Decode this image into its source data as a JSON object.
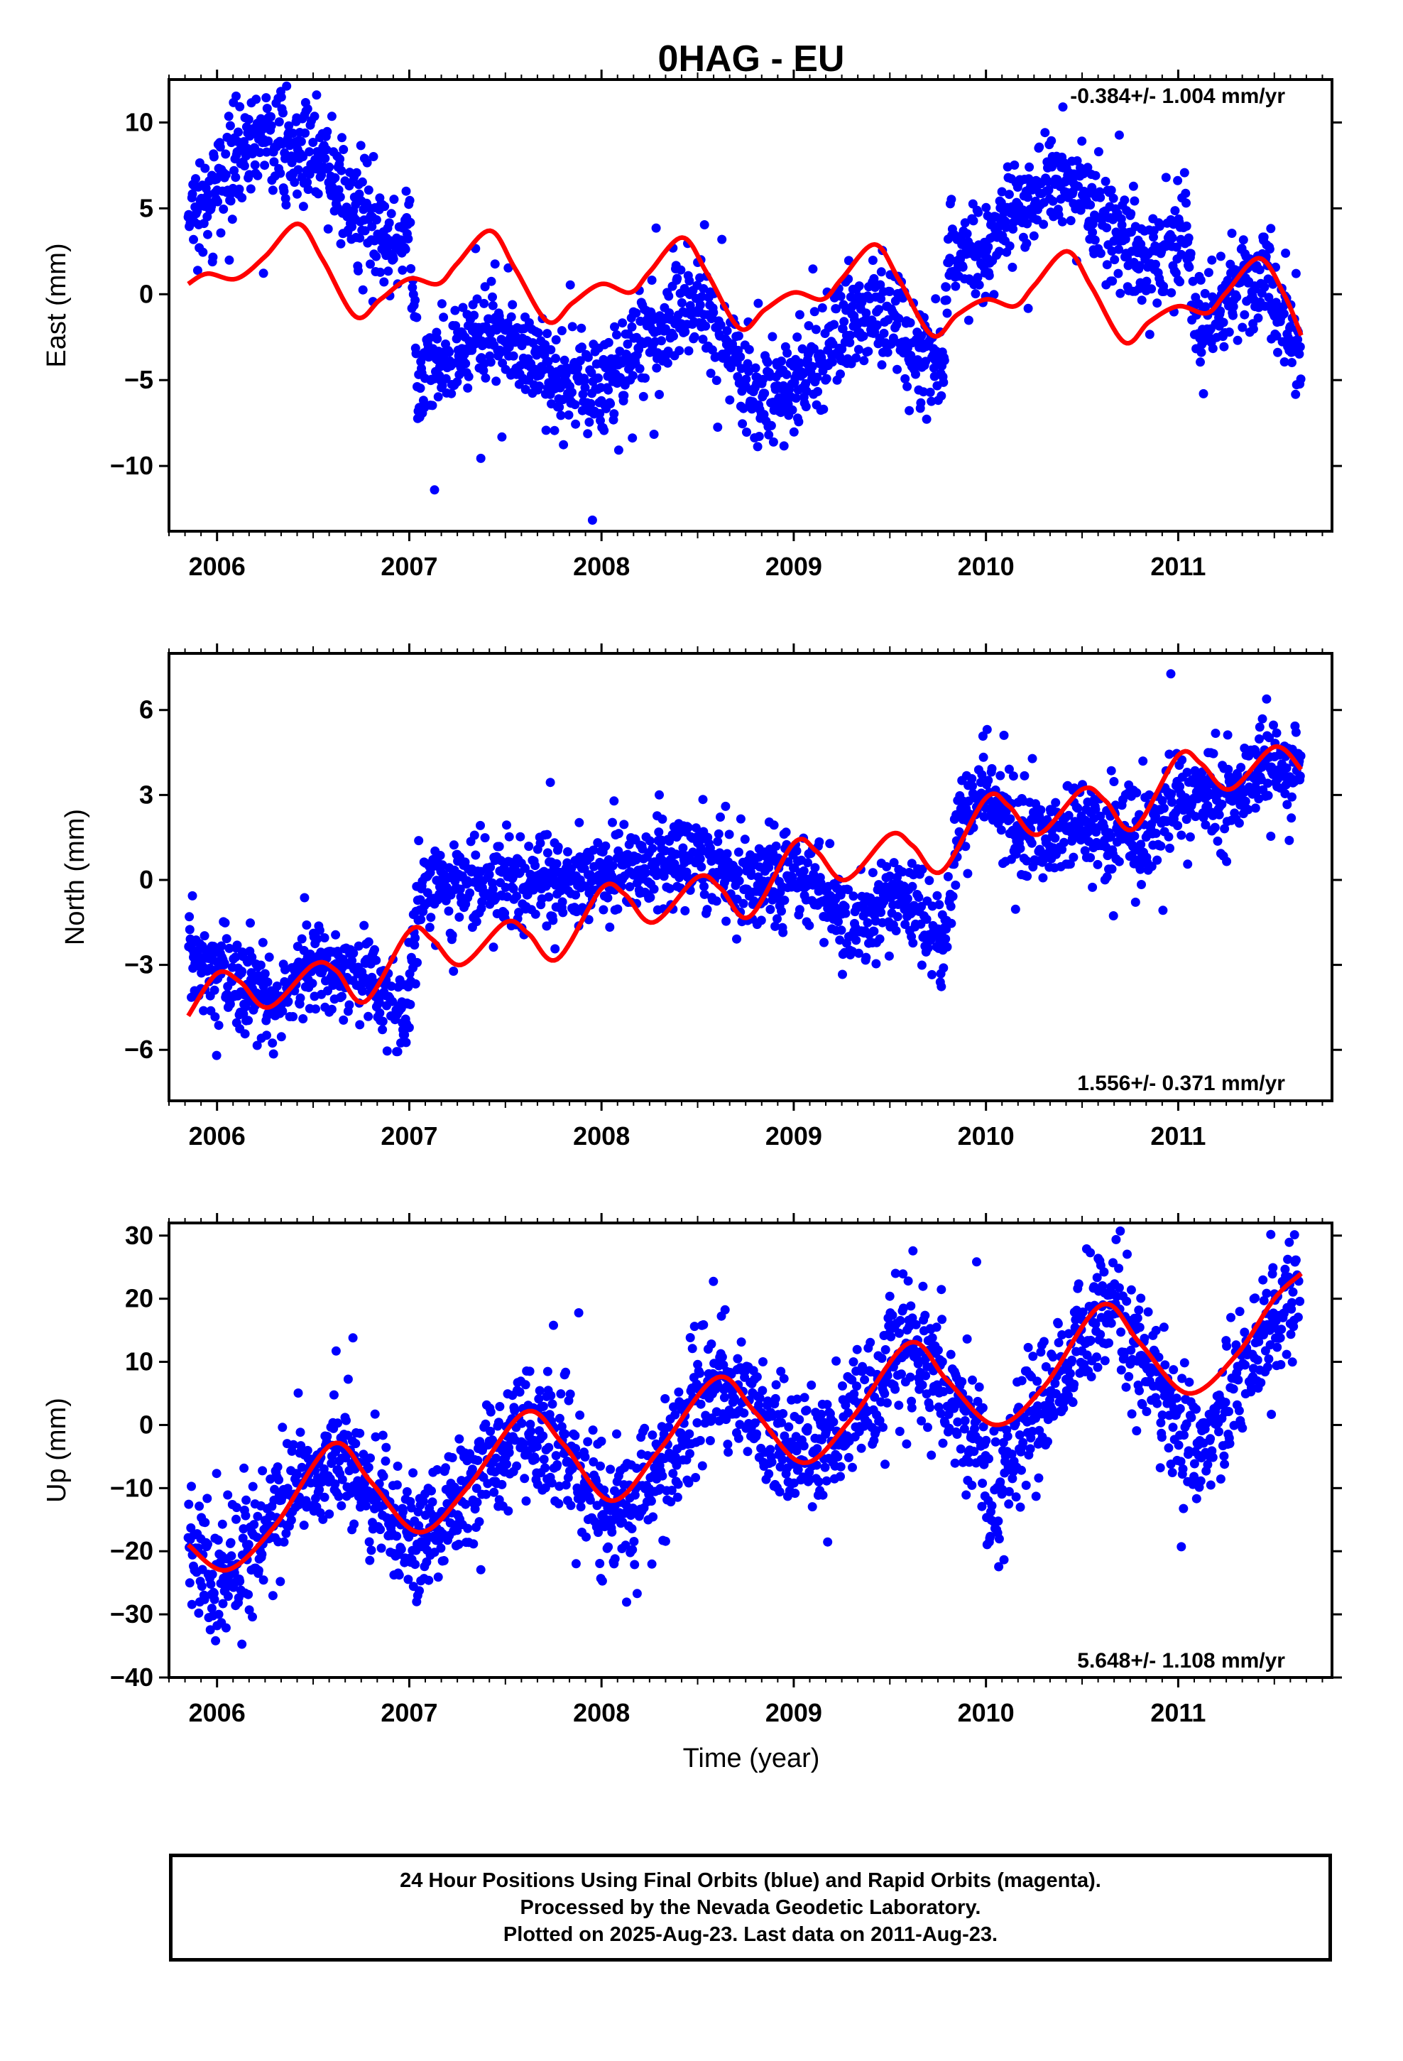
{
  "title": "0HAG - EU",
  "xlabel": "Time (year)",
  "footer": {
    "line1": "24 Hour Positions Using Final Orbits (blue) and Rapid Orbits (magenta).",
    "line2": "Processed by the Nevada Geodetic Laboratory.",
    "line3": "Plotted on 2025-Aug-23. Last data on 2011-Aug-23."
  },
  "colors": {
    "final_orbits": "#0000ff",
    "model_fit": "#ff0000",
    "rapid_orbits": "#ff00ff"
  },
  "chart_data": [
    {
      "type": "scatter",
      "component": "east",
      "ylabel": "East (mm)",
      "rate_label": "-0.384+/- 1.004 mm/yr",
      "xlim": [
        2005.75,
        2011.8
      ],
      "ylim": [
        -13.8,
        12.5
      ],
      "x_ticks": [
        2006,
        2007,
        2008,
        2009,
        2010,
        2011
      ],
      "y_ticks": [
        10,
        5,
        0,
        -5,
        -10
      ],
      "data_range": [
        2005.85,
        2011.64
      ],
      "series": [
        {
          "kind": "points",
          "color": "#0000ff",
          "trend_knots": [
            [
              2005.85,
              4.5
            ],
            [
              2006.0,
              6.5
            ],
            [
              2006.2,
              8.8
            ],
            [
              2006.5,
              8.5
            ],
            [
              2006.7,
              5.0
            ],
            [
              2006.9,
              3.0
            ],
            [
              2007.0,
              4.0
            ],
            [
              2007.05,
              -5.5
            ],
            [
              2007.3,
              -3.0
            ],
            [
              2007.5,
              -2.5
            ],
            [
              2007.8,
              -5.0
            ],
            [
              2008.0,
              -5.5
            ],
            [
              2008.3,
              -2.0
            ],
            [
              2008.5,
              -0.5
            ],
            [
              2008.8,
              -6.0
            ],
            [
              2009.0,
              -5.0
            ],
            [
              2009.4,
              -0.5
            ],
            [
              2009.6,
              -2.5
            ],
            [
              2009.78,
              -5.0
            ],
            [
              2009.8,
              2.5
            ],
            [
              2010.0,
              2.5
            ],
            [
              2010.2,
              5.5
            ],
            [
              2010.4,
              7.0
            ],
            [
              2010.6,
              4.5
            ],
            [
              2010.8,
              2.0
            ],
            [
              2011.05,
              3.0
            ],
            [
              2011.1,
              -2.5
            ],
            [
              2011.3,
              0.0
            ],
            [
              2011.45,
              1.0
            ],
            [
              2011.64,
              -3.0
            ]
          ],
          "scatter_sd": 1.5
        },
        {
          "kind": "line",
          "name": "model",
          "color": "#ff0000",
          "samples": [
            [
              2005.85,
              0.6
            ],
            [
              2005.95,
              1.2
            ],
            [
              2006.1,
              0.9
            ],
            [
              2006.25,
              2.2
            ],
            [
              2006.42,
              4.1
            ],
            [
              2006.55,
              2.0
            ],
            [
              2006.72,
              -1.3
            ],
            [
              2006.85,
              -0.3
            ],
            [
              2007.0,
              0.9
            ],
            [
              2007.15,
              0.6
            ],
            [
              2007.25,
              1.8
            ],
            [
              2007.42,
              3.7
            ],
            [
              2007.55,
              1.5
            ],
            [
              2007.72,
              -1.6
            ],
            [
              2007.85,
              -0.5
            ],
            [
              2008.0,
              0.6
            ],
            [
              2008.15,
              0.1
            ],
            [
              2008.25,
              1.3
            ],
            [
              2008.42,
              3.3
            ],
            [
              2008.55,
              1.2
            ],
            [
              2008.72,
              -2.0
            ],
            [
              2008.85,
              -0.9
            ],
            [
              2009.0,
              0.1
            ],
            [
              2009.15,
              -0.3
            ],
            [
              2009.25,
              0.9
            ],
            [
              2009.42,
              2.9
            ],
            [
              2009.55,
              0.8
            ],
            [
              2009.72,
              -2.4
            ],
            [
              2009.85,
              -1.2
            ],
            [
              2010.0,
              -0.3
            ],
            [
              2010.15,
              -0.7
            ],
            [
              2010.25,
              0.5
            ],
            [
              2010.42,
              2.5
            ],
            [
              2010.55,
              0.4
            ],
            [
              2010.72,
              -2.8
            ],
            [
              2010.85,
              -1.6
            ],
            [
              2011.0,
              -0.7
            ],
            [
              2011.15,
              -1.1
            ],
            [
              2011.25,
              0.1
            ],
            [
              2011.42,
              2.1
            ],
            [
              2011.55,
              0.0
            ],
            [
              2011.64,
              -2.4
            ]
          ]
        }
      ]
    },
    {
      "type": "scatter",
      "component": "north",
      "ylabel": "North (mm)",
      "rate_label": "1.556+/- 0.371 mm/yr",
      "xlim": [
        2005.75,
        2011.8
      ],
      "ylim": [
        -7.8,
        8.0
      ],
      "x_ticks": [
        2006,
        2007,
        2008,
        2009,
        2010,
        2011
      ],
      "y_ticks": [
        6,
        3,
        0,
        -3,
        -6
      ],
      "data_range": [
        2005.85,
        2011.64
      ],
      "series": [
        {
          "kind": "points",
          "color": "#0000ff",
          "trend_knots": [
            [
              2005.85,
              -2.8
            ],
            [
              2006.1,
              -3.5
            ],
            [
              2006.3,
              -4.3
            ],
            [
              2006.5,
              -2.8
            ],
            [
              2006.7,
              -3.5
            ],
            [
              2006.9,
              -3.8
            ],
            [
              2006.98,
              -5.5
            ],
            [
              2007.05,
              -0.5
            ],
            [
              2007.3,
              0.0
            ],
            [
              2007.6,
              0.0
            ],
            [
              2007.9,
              0.0
            ],
            [
              2008.2,
              0.5
            ],
            [
              2008.5,
              1.0
            ],
            [
              2008.8,
              -0.5
            ],
            [
              2009.0,
              0.5
            ],
            [
              2009.3,
              -1.5
            ],
            [
              2009.6,
              -0.5
            ],
            [
              2009.78,
              -2.5
            ],
            [
              2009.85,
              1.5
            ],
            [
              2010.0,
              3.5
            ],
            [
              2010.2,
              1.5
            ],
            [
              2010.5,
              2.0
            ],
            [
              2010.8,
              1.5
            ],
            [
              2011.0,
              3.0
            ],
            [
              2011.3,
              3.0
            ],
            [
              2011.5,
              4.0
            ],
            [
              2011.64,
              3.8
            ]
          ],
          "scatter_sd": 0.8
        },
        {
          "kind": "line",
          "name": "model",
          "color": "#ff0000",
          "samples": [
            [
              2005.85,
              -4.8
            ],
            [
              2006.0,
              -3.3
            ],
            [
              2006.12,
              -3.6
            ],
            [
              2006.27,
              -4.5
            ],
            [
              2006.5,
              -3.0
            ],
            [
              2006.62,
              -3.2
            ],
            [
              2006.77,
              -4.3
            ],
            [
              2007.0,
              -1.8
            ],
            [
              2007.12,
              -2.1
            ],
            [
              2007.27,
              -3.0
            ],
            [
              2007.5,
              -1.5
            ],
            [
              2007.62,
              -1.9
            ],
            [
              2007.77,
              -2.8
            ],
            [
              2008.0,
              -0.3
            ],
            [
              2008.12,
              -0.5
            ],
            [
              2008.27,
              -1.5
            ],
            [
              2008.5,
              0.1
            ],
            [
              2008.62,
              -0.3
            ],
            [
              2008.77,
              -1.3
            ],
            [
              2009.0,
              1.3
            ],
            [
              2009.12,
              1.0
            ],
            [
              2009.27,
              0.0
            ],
            [
              2009.5,
              1.6
            ],
            [
              2009.62,
              1.2
            ],
            [
              2009.77,
              0.3
            ],
            [
              2010.0,
              2.9
            ],
            [
              2010.12,
              2.6
            ],
            [
              2010.27,
              1.6
            ],
            [
              2010.5,
              3.2
            ],
            [
              2010.62,
              2.8
            ],
            [
              2010.77,
              1.8
            ],
            [
              2011.0,
              4.4
            ],
            [
              2011.12,
              4.1
            ],
            [
              2011.27,
              3.2
            ],
            [
              2011.5,
              4.7
            ],
            [
              2011.64,
              3.9
            ]
          ]
        }
      ]
    },
    {
      "type": "scatter",
      "component": "up",
      "ylabel": "Up (mm)",
      "rate_label": "5.648+/- 1.108 mm/yr",
      "xlim": [
        2005.75,
        2011.8
      ],
      "ylim": [
        -40,
        32
      ],
      "x_ticks": [
        2006,
        2007,
        2008,
        2009,
        2010,
        2011
      ],
      "y_ticks": [
        30,
        20,
        10,
        0,
        -10,
        -20,
        -30,
        -40
      ],
      "data_range": [
        2005.85,
        2011.64
      ],
      "series": [
        {
          "kind": "points",
          "color": "#0000ff",
          "trend_knots": [
            [
              2005.85,
              -20
            ],
            [
              2006.0,
              -25
            ],
            [
              2006.1,
              -22
            ],
            [
              2006.3,
              -15
            ],
            [
              2006.6,
              -4
            ],
            [
              2006.8,
              -10
            ],
            [
              2007.0,
              -19
            ],
            [
              2007.1,
              -18
            ],
            [
              2007.3,
              -10
            ],
            [
              2007.6,
              0
            ],
            [
              2007.8,
              -3
            ],
            [
              2008.0,
              -14
            ],
            [
              2008.2,
              -11
            ],
            [
              2008.4,
              -3
            ],
            [
              2008.6,
              7
            ],
            [
              2008.8,
              2
            ],
            [
              2009.0,
              -5
            ],
            [
              2009.2,
              -3
            ],
            [
              2009.4,
              5
            ],
            [
              2009.6,
              13
            ],
            [
              2009.8,
              5
            ],
            [
              2009.98,
              -2
            ],
            [
              2010.02,
              -14
            ],
            [
              2010.2,
              0
            ],
            [
              2010.4,
              8
            ],
            [
              2010.6,
              20
            ],
            [
              2010.8,
              12
            ],
            [
              2010.95,
              2
            ],
            [
              2011.1,
              -5
            ],
            [
              2011.25,
              3
            ],
            [
              2011.45,
              15
            ],
            [
              2011.64,
              23
            ]
          ],
          "scatter_sd": 5.0
        },
        {
          "kind": "line",
          "name": "model",
          "color": "#ff0000",
          "samples": [
            [
              2005.85,
              -19
            ],
            [
              2006.05,
              -23
            ],
            [
              2006.3,
              -16
            ],
            [
              2006.6,
              -3
            ],
            [
              2006.8,
              -9
            ],
            [
              2007.05,
              -17
            ],
            [
              2007.3,
              -10
            ],
            [
              2007.6,
              2
            ],
            [
              2007.8,
              -3
            ],
            [
              2008.05,
              -12
            ],
            [
              2008.3,
              -4
            ],
            [
              2008.6,
              7.5
            ],
            [
              2008.8,
              2
            ],
            [
              2009.05,
              -6
            ],
            [
              2009.3,
              1
            ],
            [
              2009.6,
              13
            ],
            [
              2009.8,
              7
            ],
            [
              2010.05,
              0
            ],
            [
              2010.3,
              6
            ],
            [
              2010.6,
              19
            ],
            [
              2010.8,
              13
            ],
            [
              2011.05,
              5
            ],
            [
              2011.3,
              11
            ],
            [
              2011.5,
              20
            ],
            [
              2011.64,
              24
            ]
          ]
        }
      ]
    }
  ]
}
